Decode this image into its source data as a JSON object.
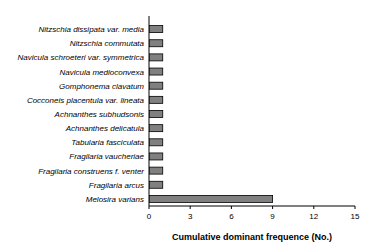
{
  "chart_data": {
    "type": "bar",
    "orientation": "horizontal",
    "x_label": "Cumulative dominant frequence (No.)",
    "categories": [
      "Nitzschia dissipata var. media",
      "Nitzschia commutata",
      "Navicula schroeteri var. symmetrica",
      "Navicula medioconvexa",
      "Gomphonema clavatum",
      "Cocconeis placentula var. lineata",
      "Achnanthes subhudsonis",
      "Achnanthes delicatula",
      "Tabularia fasciculata",
      "Fragilaria vaucheriae",
      "Fragilaria construens f. venter",
      "Fragilaria arcus",
      "Melosira varians"
    ],
    "values": [
      1,
      1,
      1,
      1,
      1,
      1,
      1,
      1,
      1,
      1,
      1,
      1,
      9
    ],
    "color": "#808080",
    "xlim": [
      0,
      15
    ],
    "xticks": [
      0,
      3,
      6,
      9,
      12,
      15
    ],
    "grid": false
  }
}
